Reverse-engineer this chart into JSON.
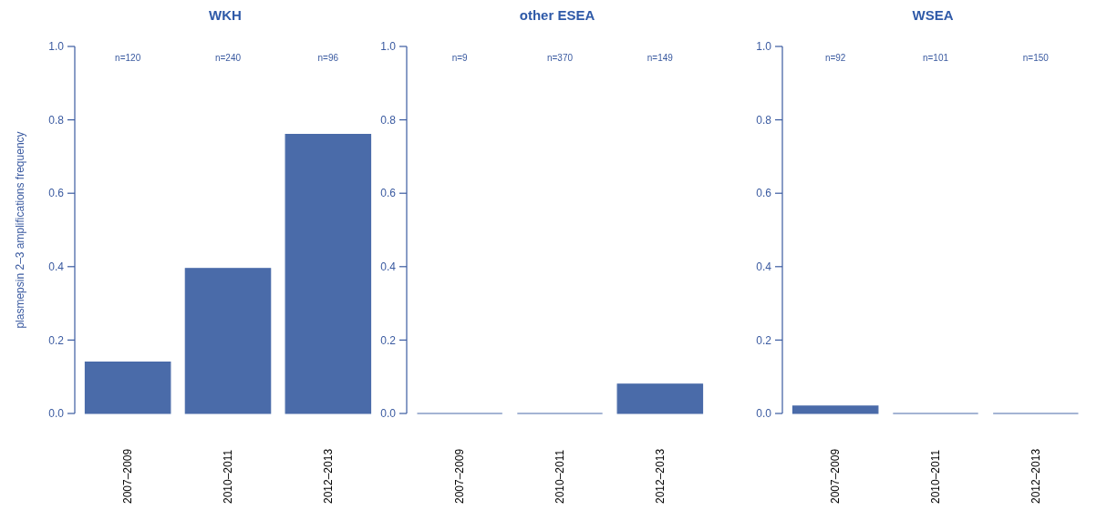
{
  "chart_data": [
    {
      "type": "bar",
      "title": "WKH",
      "ylabel": "plasmepsin 2–3 amplifications frequency",
      "categories": [
        "2007–2009",
        "2010–2011",
        "2012–2013"
      ],
      "values": [
        0.14,
        0.395,
        0.76
      ],
      "color": "#4a6ba9",
      "ylim": [
        0,
        1
      ],
      "yticks": [
        {
          "value": 0,
          "label": "0.0"
        },
        {
          "value": 0.2,
          "label": "0.2"
        },
        {
          "value": 0.4,
          "label": "0.4"
        },
        {
          "value": 0.6,
          "label": "0.6"
        },
        {
          "value": 0.8,
          "label": "0.8"
        },
        {
          "value": 1,
          "label": "1.0"
        }
      ],
      "grid": false,
      "annotations": [
        "n=120",
        "n=240",
        "n=96"
      ]
    },
    {
      "type": "bar",
      "title": "other ESEA",
      "categories": [
        "2007–2009",
        "2010–2011",
        "2012–2013"
      ],
      "values": [
        0,
        0,
        0.08
      ],
      "color": "#4a6ba9",
      "ylim": [
        0,
        1
      ],
      "yticks": [
        {
          "value": 0,
          "label": "0.0"
        },
        {
          "value": 0.2,
          "label": "0.2"
        },
        {
          "value": 0.4,
          "label": "0.4"
        },
        {
          "value": 0.6,
          "label": "0.6"
        },
        {
          "value": 0.8,
          "label": "0.8"
        },
        {
          "value": 1,
          "label": "1.0"
        }
      ],
      "grid": false,
      "annotations": [
        "n=9",
        "n=370",
        "n=149"
      ]
    },
    {
      "type": "bar",
      "title": "WSEA",
      "categories": [
        "2007–2009",
        "2010–2011",
        "2012–2013"
      ],
      "values": [
        0.02,
        0,
        0
      ],
      "color": "#4a6ba9",
      "ylim": [
        0,
        1
      ],
      "yticks": [
        {
          "value": 0,
          "label": "0.0"
        },
        {
          "value": 0.2,
          "label": "0.2"
        },
        {
          "value": 0.4,
          "label": "0.4"
        },
        {
          "value": 0.6,
          "label": "0.6"
        },
        {
          "value": 0.8,
          "label": "0.8"
        },
        {
          "value": 1,
          "label": "1.0"
        }
      ],
      "grid": false,
      "annotations": [
        "n=92",
        "n=101",
        "n=150"
      ]
    }
  ]
}
